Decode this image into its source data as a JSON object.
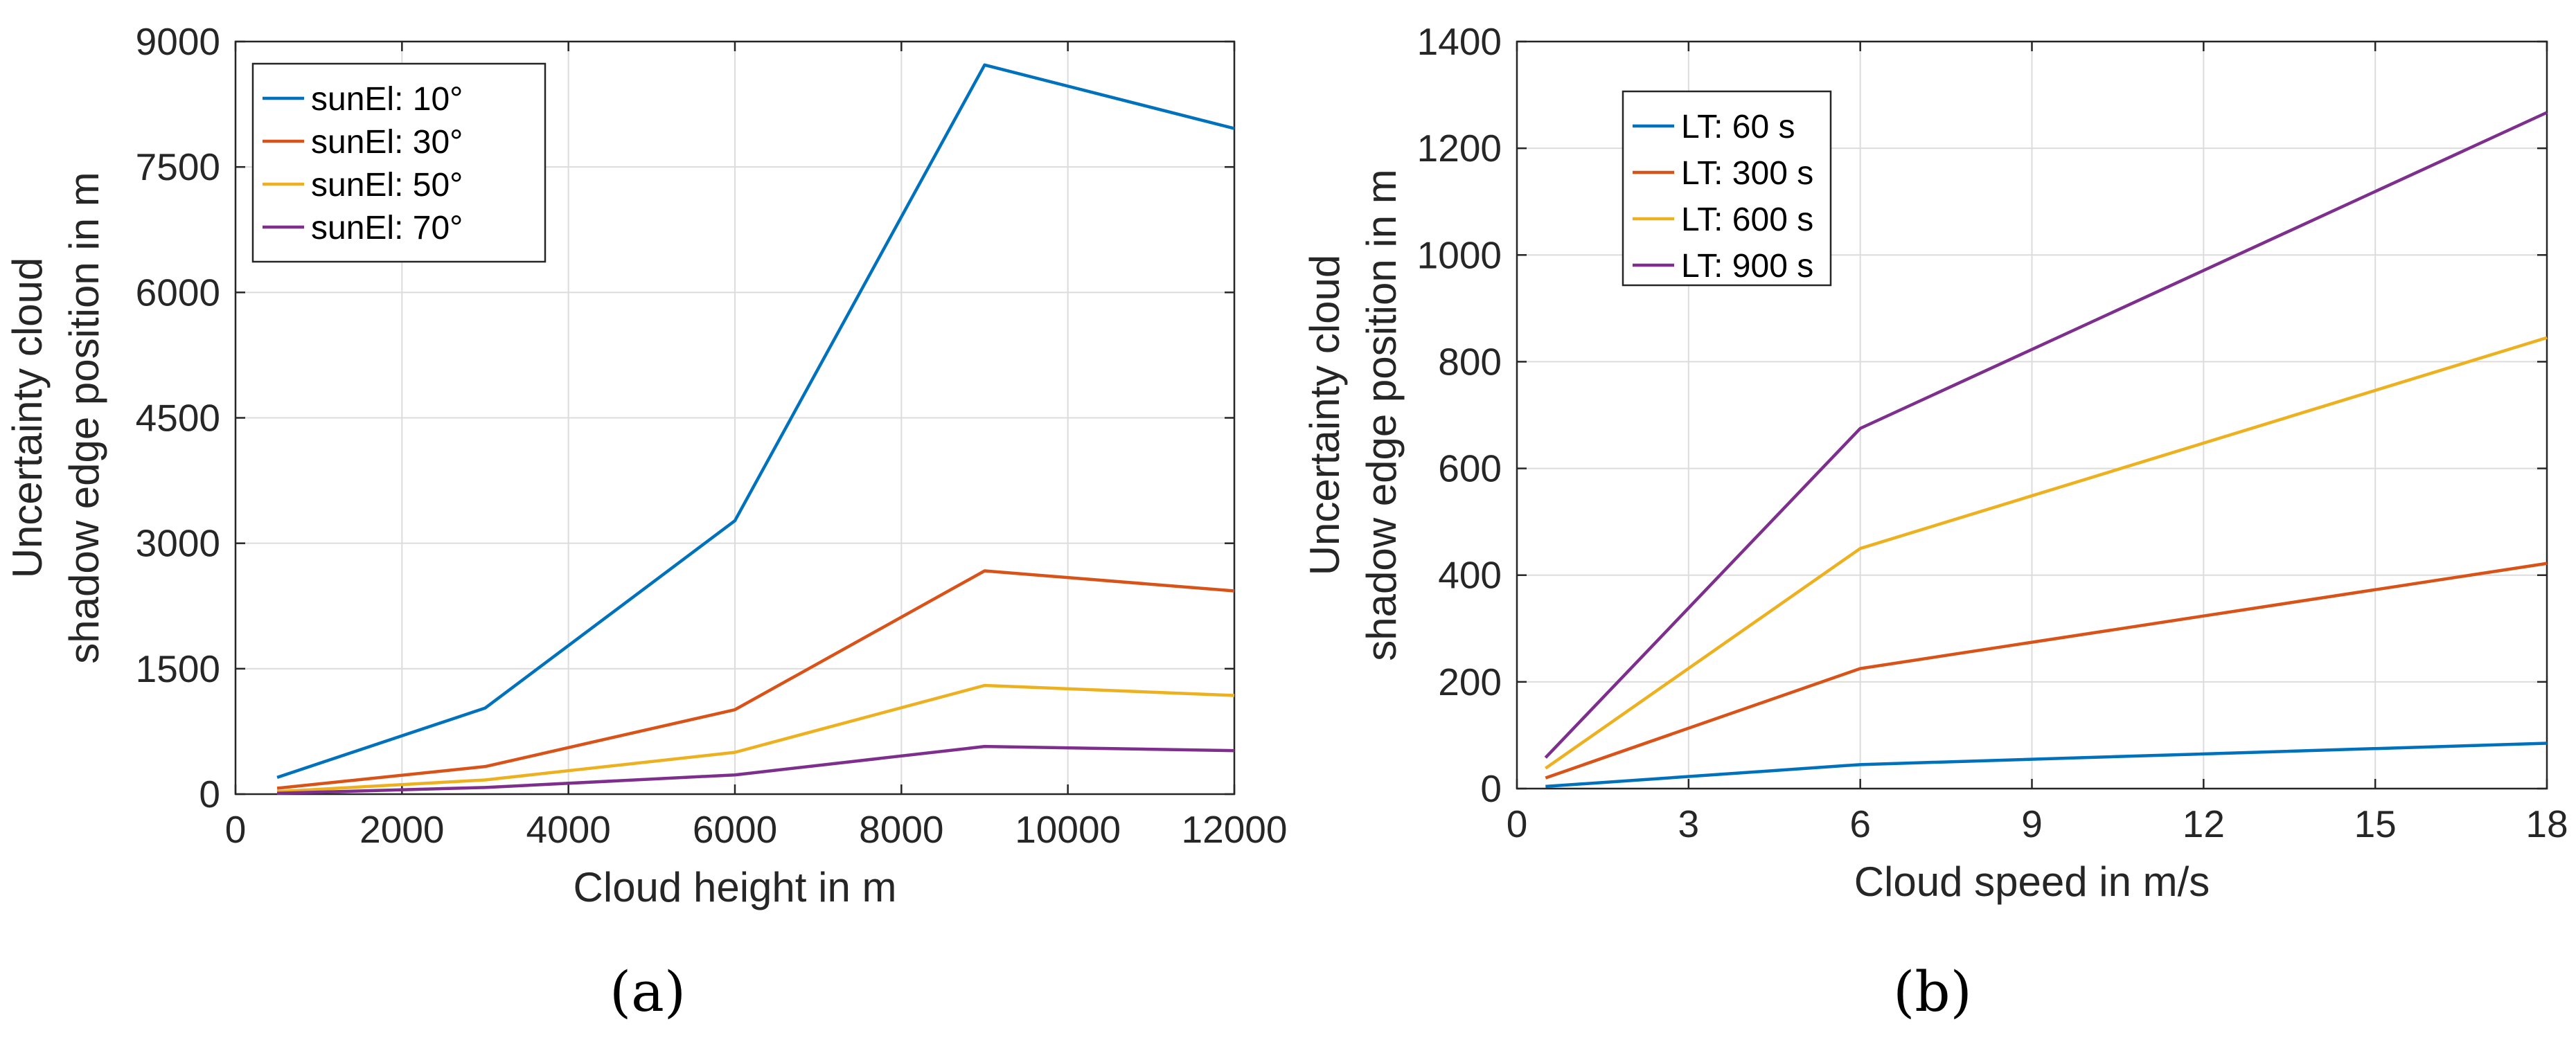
{
  "chart_data": [
    {
      "type": "line",
      "caption": "(a)",
      "xlabel": "Cloud height in m",
      "ylabel_lines": [
        "Uncertainty cloud",
        "shadow edge position in m"
      ],
      "xlim": [
        0,
        12000
      ],
      "ylim": [
        0,
        9000
      ],
      "xticks": [
        0,
        2000,
        4000,
        6000,
        8000,
        10000,
        12000
      ],
      "yticks": [
        0,
        1500,
        3000,
        4500,
        6000,
        7500,
        9000
      ],
      "grid": true,
      "legend_position": "top-left",
      "x": [
        500,
        3000,
        6000,
        9000,
        12000
      ],
      "series": [
        {
          "name": "sunEl: 10°",
          "color": "#0072BD",
          "values": [
            200,
            1030,
            3270,
            8720,
            7960
          ]
        },
        {
          "name": "sunEl: 30°",
          "color": "#D95319",
          "values": [
            70,
            330,
            1010,
            2670,
            2430
          ]
        },
        {
          "name": "sunEl: 50°",
          "color": "#EDB120",
          "values": [
            30,
            170,
            500,
            1300,
            1180
          ]
        },
        {
          "name": "sunEl: 70°",
          "color": "#7E2F8E",
          "values": [
            10,
            80,
            230,
            570,
            520
          ]
        }
      ]
    },
    {
      "type": "line",
      "caption": "(b)",
      "xlabel": "Cloud speed in m/s",
      "ylabel_lines": [
        "Uncertainty cloud",
        "shadow edge position in m"
      ],
      "xlim": [
        0,
        18
      ],
      "ylim": [
        0,
        1400
      ],
      "xticks": [
        0,
        3,
        6,
        9,
        12,
        15,
        18
      ],
      "yticks": [
        0,
        200,
        400,
        600,
        800,
        1000,
        1200,
        1400
      ],
      "grid": true,
      "legend_position": "top-left",
      "x": [
        0.5,
        6,
        18
      ],
      "series": [
        {
          "name": "LT: 60 s",
          "color": "#0072BD",
          "values": [
            4,
            45,
            85
          ]
        },
        {
          "name": "LT: 300 s",
          "color": "#D95319",
          "values": [
            20,
            225,
            422
          ]
        },
        {
          "name": "LT: 600 s",
          "color": "#EDB120",
          "values": [
            38,
            450,
            845
          ]
        },
        {
          "name": "LT: 900 s",
          "color": "#7E2F8E",
          "values": [
            58,
            675,
            1267
          ]
        }
      ]
    }
  ]
}
